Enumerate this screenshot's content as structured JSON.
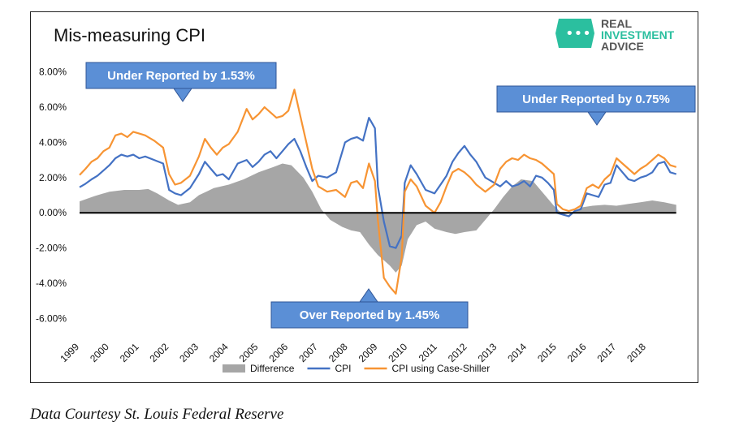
{
  "chart_data": {
    "type": "line",
    "title": "Mis-measuring CPI",
    "ylim": [
      -0.07,
      0.09
    ],
    "yticks": [
      "8.00%",
      "6.00%",
      "4.00%",
      "2.00%",
      "0.00%",
      "-2.00%",
      "-4.00%",
      "-6.00%"
    ],
    "ytick_values": [
      0.08,
      0.06,
      0.04,
      0.02,
      0.0,
      -0.02,
      -0.04,
      -0.06
    ],
    "xlim": [
      1999,
      2019.2
    ],
    "xticks": [
      "1999",
      "2000",
      "2001",
      "2002",
      "2003",
      "2004",
      "2005",
      "2006",
      "2007",
      "2008",
      "2009",
      "2010",
      "2011",
      "2012",
      "2013",
      "2014",
      "2015",
      "2016",
      "2017",
      "2018"
    ],
    "xtick_values": [
      1999,
      2000,
      2001,
      2002,
      2003,
      2004,
      2005,
      2006,
      2007,
      2008,
      2009,
      2010,
      2011,
      2012,
      2013,
      2014,
      2015,
      2016,
      2017,
      2018
    ],
    "grid": false,
    "legend": "bottom",
    "series": [
      {
        "name": "Difference",
        "kind": "area",
        "color": "#a6a6a6",
        "x": [
          1999.0,
          1999.5,
          2000.0,
          2000.5,
          2001.0,
          2001.3,
          2001.6,
          2002.0,
          2002.3,
          2002.7,
          2003.0,
          2003.5,
          2004.0,
          2004.5,
          2005.0,
          2005.5,
          2005.8,
          2006.1,
          2006.5,
          2006.8,
          2007.1,
          2007.4,
          2007.8,
          2008.1,
          2008.4,
          2008.7,
          2009.0,
          2009.2,
          2009.4,
          2009.6,
          2009.8,
          2010.0,
          2010.3,
          2010.6,
          2010.9,
          2011.3,
          2011.6,
          2011.9,
          2012.3,
          2012.6,
          2012.9,
          2013.2,
          2013.5,
          2013.8,
          2014.2,
          2014.6,
          2014.9,
          2015.2,
          2015.5,
          2015.8,
          2016.2,
          2016.6,
          2017.0,
          2017.4,
          2017.8,
          2018.2,
          2018.6,
          2019.0
        ],
        "y": [
          0.0065,
          0.0095,
          0.012,
          0.013,
          0.013,
          0.0135,
          0.011,
          0.007,
          0.0045,
          0.006,
          0.01,
          0.014,
          0.016,
          0.019,
          0.023,
          0.026,
          0.028,
          0.027,
          0.02,
          0.012,
          0.002,
          -0.004,
          -0.008,
          -0.01,
          -0.011,
          -0.018,
          -0.024,
          -0.027,
          -0.03,
          -0.034,
          -0.03,
          -0.015,
          -0.007,
          -0.005,
          -0.009,
          -0.011,
          -0.012,
          -0.011,
          -0.01,
          -0.004,
          0.002,
          0.009,
          0.015,
          0.019,
          0.018,
          0.01,
          0.004,
          -0.001,
          0.0,
          0.003,
          0.004,
          0.0045,
          0.004,
          0.005,
          0.006,
          0.007,
          0.006,
          0.0045
        ]
      },
      {
        "name": "CPI",
        "kind": "line",
        "color": "#4472c4",
        "x": [
          1999.0,
          1999.2,
          1999.4,
          1999.6,
          1999.8,
          2000.0,
          2000.2,
          2000.4,
          2000.6,
          2000.8,
          2001.0,
          2001.2,
          2001.5,
          2001.8,
          2002.0,
          2002.2,
          2002.4,
          2002.7,
          2003.0,
          2003.2,
          2003.4,
          2003.6,
          2003.8,
          2004.0,
          2004.3,
          2004.6,
          2004.8,
          2005.0,
          2005.2,
          2005.4,
          2005.6,
          2005.8,
          2006.0,
          2006.2,
          2006.4,
          2006.6,
          2006.8,
          2007.0,
          2007.3,
          2007.6,
          2007.9,
          2008.1,
          2008.3,
          2008.5,
          2008.7,
          2008.9,
          2009.0,
          2009.2,
          2009.4,
          2009.6,
          2009.8,
          2009.9,
          2010.1,
          2010.3,
          2010.6,
          2010.9,
          2011.1,
          2011.3,
          2011.5,
          2011.7,
          2011.9,
          2012.1,
          2012.3,
          2012.6,
          2012.9,
          2013.1,
          2013.3,
          2013.5,
          2013.7,
          2013.9,
          2014.1,
          2014.3,
          2014.5,
          2014.7,
          2014.9,
          2015.0,
          2015.2,
          2015.4,
          2015.6,
          2015.8,
          2016.0,
          2016.2,
          2016.4,
          2016.6,
          2016.8,
          2017.0,
          2017.2,
          2017.4,
          2017.6,
          2017.8,
          2018.0,
          2018.2,
          2018.4,
          2018.6,
          2018.8,
          2019.0
        ],
        "y": [
          0.0145,
          0.0165,
          0.019,
          0.021,
          0.024,
          0.027,
          0.031,
          0.033,
          0.032,
          0.033,
          0.031,
          0.032,
          0.03,
          0.028,
          0.013,
          0.011,
          0.01,
          0.014,
          0.022,
          0.029,
          0.025,
          0.021,
          0.022,
          0.019,
          0.028,
          0.03,
          0.026,
          0.029,
          0.033,
          0.035,
          0.031,
          0.035,
          0.039,
          0.042,
          0.035,
          0.026,
          0.018,
          0.021,
          0.02,
          0.023,
          0.04,
          0.042,
          0.043,
          0.041,
          0.054,
          0.048,
          0.015,
          -0.005,
          -0.019,
          -0.02,
          -0.013,
          0.017,
          0.027,
          0.022,
          0.013,
          0.011,
          0.016,
          0.021,
          0.029,
          0.034,
          0.038,
          0.033,
          0.029,
          0.02,
          0.017,
          0.015,
          0.018,
          0.015,
          0.016,
          0.018,
          0.015,
          0.021,
          0.02,
          0.017,
          0.013,
          0.0,
          -0.001,
          -0.002,
          0.001,
          0.002,
          0.011,
          0.01,
          0.009,
          0.016,
          0.017,
          0.027,
          0.023,
          0.019,
          0.018,
          0.02,
          0.021,
          0.023,
          0.028,
          0.029,
          0.023,
          0.022
        ]
      },
      {
        "name": "CPI using Case-Shiller",
        "kind": "line",
        "color": "#f79433",
        "x": [
          1999.0,
          1999.2,
          1999.4,
          1999.6,
          1999.8,
          2000.0,
          2000.2,
          2000.4,
          2000.6,
          2000.8,
          2001.0,
          2001.2,
          2001.5,
          2001.8,
          2002.0,
          2002.2,
          2002.4,
          2002.7,
          2003.0,
          2003.2,
          2003.4,
          2003.6,
          2003.8,
          2004.0,
          2004.3,
          2004.6,
          2004.8,
          2005.0,
          2005.2,
          2005.4,
          2005.6,
          2005.8,
          2006.0,
          2006.2,
          2006.4,
          2006.6,
          2006.8,
          2007.0,
          2007.3,
          2007.6,
          2007.9,
          2008.1,
          2008.3,
          2008.5,
          2008.7,
          2008.9,
          2009.0,
          2009.2,
          2009.4,
          2009.6,
          2009.8,
          2009.9,
          2010.1,
          2010.3,
          2010.6,
          2010.9,
          2011.1,
          2011.3,
          2011.5,
          2011.7,
          2011.9,
          2012.1,
          2012.3,
          2012.6,
          2012.9,
          2013.1,
          2013.3,
          2013.5,
          2013.7,
          2013.9,
          2014.1,
          2014.3,
          2014.5,
          2014.7,
          2014.9,
          2015.0,
          2015.2,
          2015.4,
          2015.6,
          2015.8,
          2016.0,
          2016.2,
          2016.4,
          2016.6,
          2016.8,
          2017.0,
          2017.2,
          2017.4,
          2017.6,
          2017.8,
          2018.0,
          2018.2,
          2018.4,
          2018.6,
          2018.8,
          2019.0
        ],
        "y": [
          0.0215,
          0.025,
          0.029,
          0.031,
          0.035,
          0.037,
          0.044,
          0.045,
          0.043,
          0.046,
          0.045,
          0.044,
          0.041,
          0.037,
          0.022,
          0.016,
          0.017,
          0.021,
          0.032,
          0.042,
          0.037,
          0.033,
          0.037,
          0.039,
          0.046,
          0.059,
          0.053,
          0.056,
          0.06,
          0.057,
          0.054,
          0.055,
          0.058,
          0.07,
          0.055,
          0.04,
          0.025,
          0.015,
          0.012,
          0.013,
          0.009,
          0.017,
          0.018,
          0.014,
          0.028,
          0.018,
          -0.004,
          -0.037,
          -0.042,
          -0.046,
          -0.025,
          0.012,
          0.019,
          0.015,
          0.004,
          0.0,
          0.006,
          0.015,
          0.023,
          0.025,
          0.023,
          0.02,
          0.016,
          0.012,
          0.016,
          0.025,
          0.029,
          0.031,
          0.03,
          0.033,
          0.031,
          0.03,
          0.028,
          0.025,
          0.022,
          0.005,
          0.002,
          0.001,
          0.002,
          0.004,
          0.014,
          0.016,
          0.014,
          0.019,
          0.022,
          0.031,
          0.028,
          0.025,
          0.022,
          0.025,
          0.027,
          0.03,
          0.033,
          0.031,
          0.027,
          0.026
        ]
      }
    ],
    "callouts": [
      {
        "text": "Under Reported by 1.53%",
        "arrow": "down"
      },
      {
        "text": "Under Reported by 0.75%",
        "arrow": "down"
      },
      {
        "text": "Over Reported by 1.45%",
        "arrow": "up"
      }
    ]
  },
  "brand": {
    "line1": "REAL",
    "line2": "INVESTMENT",
    "line3": "ADVICE",
    "icon": "shield-logo-icon",
    "color_teal": "#2bbf9f",
    "color_dark": "#555555"
  },
  "caption": "Data Courtesy St. Louis Federal Reserve"
}
